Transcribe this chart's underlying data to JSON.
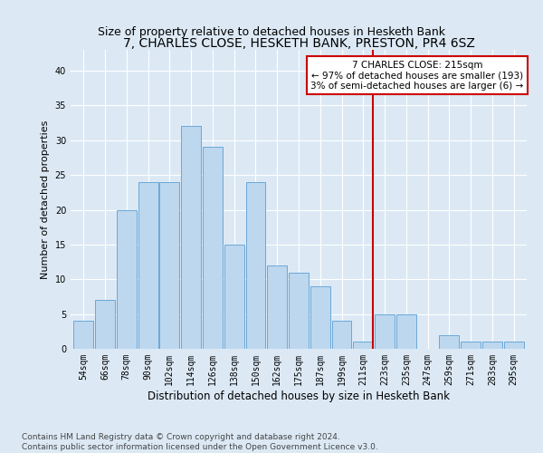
{
  "title": "7, CHARLES CLOSE, HESKETH BANK, PRESTON, PR4 6SZ",
  "subtitle": "Size of property relative to detached houses in Hesketh Bank",
  "xlabel": "Distribution of detached houses by size in Hesketh Bank",
  "ylabel": "Number of detached properties",
  "categories": [
    "54sqm",
    "66sqm",
    "78sqm",
    "90sqm",
    "102sqm",
    "114sqm",
    "126sqm",
    "138sqm",
    "150sqm",
    "162sqm",
    "175sqm",
    "187sqm",
    "199sqm",
    "211sqm",
    "223sqm",
    "235sqm",
    "247sqm",
    "259sqm",
    "271sqm",
    "283sqm",
    "295sqm"
  ],
  "values": [
    4,
    7,
    20,
    24,
    24,
    32,
    29,
    15,
    24,
    12,
    11,
    9,
    4,
    1,
    5,
    5,
    0,
    2,
    1,
    1,
    1
  ],
  "bar_color": "#bdd7ee",
  "bar_edge_color": "#5a9fd4",
  "reference_line_label": "7 CHARLES CLOSE: 215sqm",
  "annotation_line1": "← 97% of detached houses are smaller (193)",
  "annotation_line2": "3% of semi-detached houses are larger (6) →",
  "annotation_box_facecolor": "#ffffff",
  "annotation_box_edgecolor": "#cc0000",
  "vline_color": "#cc0000",
  "background_color": "#dce9f5",
  "ylim": [
    0,
    43
  ],
  "yticks": [
    0,
    5,
    10,
    15,
    20,
    25,
    30,
    35,
    40
  ],
  "footer_line1": "Contains HM Land Registry data © Crown copyright and database right 2024.",
  "footer_line2": "Contains public sector information licensed under the Open Government Licence v3.0.",
  "title_fontsize": 10,
  "subtitle_fontsize": 9,
  "xlabel_fontsize": 8.5,
  "ylabel_fontsize": 8,
  "tick_fontsize": 7,
  "footer_fontsize": 6.5,
  "annotation_fontsize": 7.5
}
